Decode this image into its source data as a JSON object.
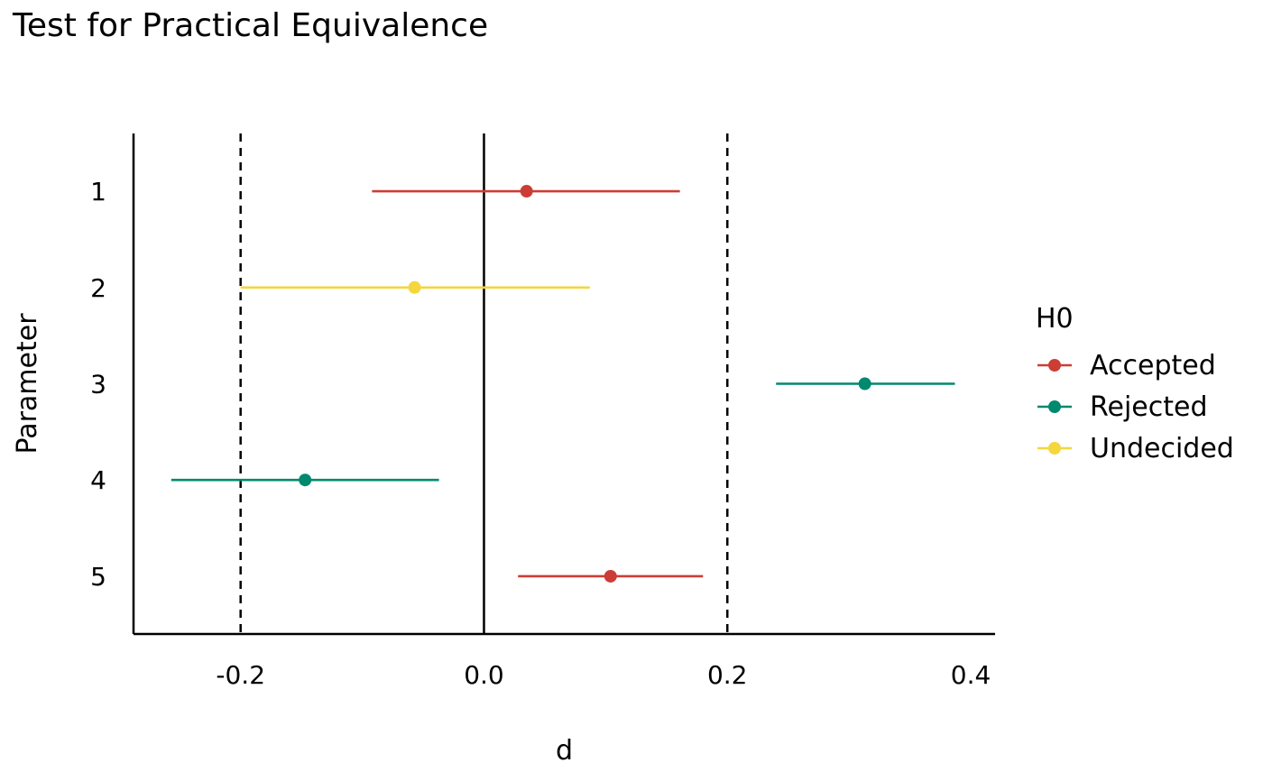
{
  "chart_data": {
    "type": "scatter",
    "title": "Test for Practical Equivalence",
    "xlabel": "d",
    "ylabel": "Parameter",
    "xlim": [
      -0.288,
      0.42
    ],
    "x_ticks": [
      -0.2,
      0.0,
      0.2,
      0.4
    ],
    "x_tick_labels": [
      "-0.2",
      "0.0",
      "0.2",
      "0.4"
    ],
    "categories": [
      "1",
      "2",
      "3",
      "4",
      "5"
    ],
    "reference_lines": {
      "zero": 0.0,
      "rope": [
        -0.2,
        0.2
      ]
    },
    "legend": {
      "title": "H0",
      "placement": "right",
      "entries": [
        {
          "label": "Accepted",
          "color": "#cc3d36"
        },
        {
          "label": "Rejected",
          "color": "#00896e"
        },
        {
          "label": "Undecided",
          "color": "#f5d63d"
        }
      ]
    },
    "points": [
      {
        "parameter": "1",
        "estimate": 0.035,
        "low": -0.092,
        "high": 0.161,
        "h0": "Accepted"
      },
      {
        "parameter": "2",
        "estimate": -0.057,
        "low": -0.2,
        "high": 0.087,
        "h0": "Undecided"
      },
      {
        "parameter": "3",
        "estimate": 0.313,
        "low": 0.24,
        "high": 0.387,
        "h0": "Rejected"
      },
      {
        "parameter": "4",
        "estimate": -0.147,
        "low": -0.257,
        "high": -0.037,
        "h0": "Rejected"
      },
      {
        "parameter": "5",
        "estimate": 0.104,
        "low": 0.028,
        "high": 0.18,
        "h0": "Accepted"
      }
    ],
    "grid": false
  }
}
